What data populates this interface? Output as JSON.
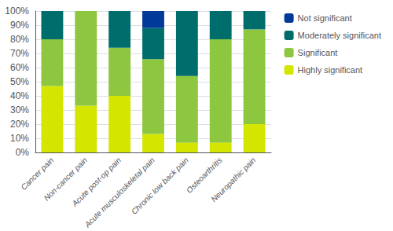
{
  "chart_data": {
    "type": "bar",
    "stacked": true,
    "categories": [
      "Cancer pain",
      "Non-cancer pain",
      "Acute post-op pain",
      "Acute musculoskeletal pain",
      "Chronic low back pain",
      "Osteoarthritis",
      "Neuropathic pain"
    ],
    "series": [
      {
        "name": "Highly significant",
        "color": "#d4e600",
        "values": [
          47,
          33,
          40,
          13,
          7,
          7,
          20
        ]
      },
      {
        "name": "Significant",
        "color": "#8dc63f",
        "values": [
          33,
          67,
          34,
          53,
          47,
          73,
          67
        ]
      },
      {
        "name": "Moderately significant",
        "color": "#006d6d",
        "values": [
          20,
          0,
          26,
          22,
          46,
          20,
          13
        ]
      },
      {
        "name": "Not significant",
        "color": "#003a99",
        "values": [
          0,
          0,
          0,
          12,
          0,
          0,
          0
        ]
      }
    ],
    "ylim": [
      0,
      100
    ],
    "yticks": [
      {
        "value": 0,
        "label": "0%"
      },
      {
        "value": 10,
        "label": "10%"
      },
      {
        "value": 20,
        "label": "20%"
      },
      {
        "value": 30,
        "label": "30%"
      },
      {
        "value": 40,
        "label": "40%"
      },
      {
        "value": 50,
        "label": "50%"
      },
      {
        "value": 60,
        "label": "60%"
      },
      {
        "value": 70,
        "label": "70%"
      },
      {
        "value": 80,
        "label": "80%"
      },
      {
        "value": 90,
        "label": "90%"
      },
      {
        "value": 100,
        "label": "100%"
      }
    ],
    "grid": true,
    "legend": "right"
  }
}
